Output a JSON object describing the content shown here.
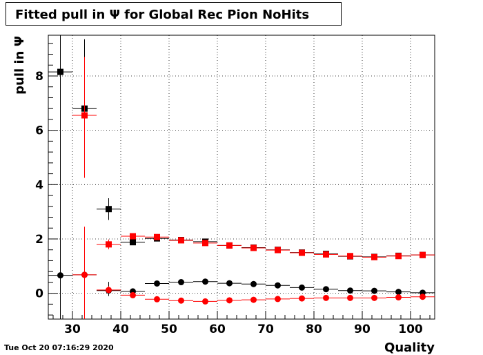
{
  "chart_data": {
    "type": "scatter",
    "title": "Fitted pull in  Ψ  for Global Rec Pion NoHits",
    "xlabel": "Quality",
    "ylabel": "pull in  Ψ",
    "xlim": [
      25,
      105
    ],
    "ylim": [
      -0.95,
      9.5
    ],
    "x_ticks": [
      30,
      40,
      50,
      60,
      70,
      80,
      90,
      100
    ],
    "y_ticks": [
      0,
      2,
      4,
      6,
      8
    ],
    "grid": true,
    "legend": "none",
    "series": [
      {
        "marker": "square",
        "color": "#000000",
        "points": [
          {
            "x": 27.5,
            "y": 8.15,
            "xerr": 2.5,
            "ylo": -0.95,
            "yhi": 9.5
          },
          {
            "x": 32.5,
            "y": 6.8,
            "xerr": 2.5,
            "ylo": 6.75,
            "yhi": 9.35
          },
          {
            "x": 37.5,
            "y": 3.1,
            "xerr": 2.5,
            "ylo": 2.7,
            "yhi": 3.5
          },
          {
            "x": 42.5,
            "y": 1.88,
            "xerr": 2.5,
            "ylo": 1.82,
            "yhi": 1.94
          },
          {
            "x": 47.5,
            "y": 2.02,
            "xerr": 2.5,
            "ylo": 1.97,
            "yhi": 2.07
          },
          {
            "x": 52.5,
            "y": 1.96,
            "xerr": 2.5,
            "ylo": 1.92,
            "yhi": 2.0
          },
          {
            "x": 57.5,
            "y": 1.9,
            "xerr": 2.5,
            "ylo": 1.86,
            "yhi": 1.94
          },
          {
            "x": 62.5,
            "y": 1.76,
            "xerr": 2.5,
            "ylo": 1.72,
            "yhi": 1.8
          },
          {
            "x": 67.5,
            "y": 1.68,
            "xerr": 2.5,
            "ylo": 1.64,
            "yhi": 1.72
          },
          {
            "x": 72.5,
            "y": 1.6,
            "xerr": 2.5,
            "ylo": 1.56,
            "yhi": 1.64
          },
          {
            "x": 77.5,
            "y": 1.5,
            "xerr": 2.5,
            "ylo": 1.46,
            "yhi": 1.54
          },
          {
            "x": 82.5,
            "y": 1.45,
            "xerr": 2.5,
            "ylo": 1.41,
            "yhi": 1.49
          },
          {
            "x": 87.5,
            "y": 1.36,
            "xerr": 2.5,
            "ylo": 1.32,
            "yhi": 1.4
          },
          {
            "x": 92.5,
            "y": 1.34,
            "xerr": 2.5,
            "ylo": 1.3,
            "yhi": 1.38
          },
          {
            "x": 97.5,
            "y": 1.38,
            "xerr": 2.5,
            "ylo": 1.34,
            "yhi": 1.42
          },
          {
            "x": 102.5,
            "y": 1.41,
            "xerr": 2.5,
            "ylo": 1.37,
            "yhi": 1.45
          }
        ]
      },
      {
        "marker": "square",
        "color": "#ff0000",
        "points": [
          {
            "x": 32.5,
            "y": 6.55,
            "xerr": 2.5,
            "ylo": 4.25,
            "yhi": 8.7
          },
          {
            "x": 37.5,
            "y": 1.8,
            "xerr": 2.5,
            "ylo": 1.62,
            "yhi": 1.98
          },
          {
            "x": 42.5,
            "y": 2.1,
            "xerr": 2.5,
            "ylo": 2.04,
            "yhi": 2.16
          },
          {
            "x": 47.5,
            "y": 2.07,
            "xerr": 2.5,
            "ylo": 2.02,
            "yhi": 2.12
          },
          {
            "x": 52.5,
            "y": 1.95,
            "xerr": 2.5,
            "ylo": 1.91,
            "yhi": 1.99
          },
          {
            "x": 57.5,
            "y": 1.85,
            "xerr": 2.5,
            "ylo": 1.81,
            "yhi": 1.89
          },
          {
            "x": 62.5,
            "y": 1.76,
            "xerr": 2.5,
            "ylo": 1.72,
            "yhi": 1.8
          },
          {
            "x": 67.5,
            "y": 1.67,
            "xerr": 2.5,
            "ylo": 1.63,
            "yhi": 1.71
          },
          {
            "x": 72.5,
            "y": 1.59,
            "xerr": 2.5,
            "ylo": 1.55,
            "yhi": 1.63
          },
          {
            "x": 77.5,
            "y": 1.49,
            "xerr": 2.5,
            "ylo": 1.45,
            "yhi": 1.53
          },
          {
            "x": 82.5,
            "y": 1.43,
            "xerr": 2.5,
            "ylo": 1.39,
            "yhi": 1.47
          },
          {
            "x": 87.5,
            "y": 1.37,
            "xerr": 2.5,
            "ylo": 1.33,
            "yhi": 1.41
          },
          {
            "x": 92.5,
            "y": 1.33,
            "xerr": 2.5,
            "ylo": 1.29,
            "yhi": 1.37
          },
          {
            "x": 97.5,
            "y": 1.37,
            "xerr": 2.5,
            "ylo": 1.33,
            "yhi": 1.41
          },
          {
            "x": 102.5,
            "y": 1.41,
            "xerr": 2.5,
            "ylo": 1.37,
            "yhi": 1.45
          }
        ]
      },
      {
        "marker": "circle",
        "color": "#000000",
        "points": [
          {
            "x": 27.5,
            "y": 0.66,
            "xerr": 2.5,
            "ylo": 0.66,
            "yhi": 0.66
          },
          {
            "x": 32.5,
            "y": 0.68,
            "xerr": 2.5,
            "ylo": 0.6,
            "yhi": 0.76
          },
          {
            "x": 37.5,
            "y": 0.1,
            "xerr": 2.5,
            "ylo": -0.1,
            "yhi": 0.42
          },
          {
            "x": 42.5,
            "y": 0.07,
            "xerr": 2.5,
            "ylo": 0.02,
            "yhi": 0.12
          },
          {
            "x": 47.5,
            "y": 0.36,
            "xerr": 2.5,
            "ylo": 0.32,
            "yhi": 0.4
          },
          {
            "x": 52.5,
            "y": 0.41,
            "xerr": 2.5,
            "ylo": 0.37,
            "yhi": 0.45
          },
          {
            "x": 57.5,
            "y": 0.43,
            "xerr": 2.5,
            "ylo": 0.39,
            "yhi": 0.47
          },
          {
            "x": 62.5,
            "y": 0.37,
            "xerr": 2.5,
            "ylo": 0.33,
            "yhi": 0.41
          },
          {
            "x": 67.5,
            "y": 0.34,
            "xerr": 2.5,
            "ylo": 0.3,
            "yhi": 0.38
          },
          {
            "x": 72.5,
            "y": 0.29,
            "xerr": 2.5,
            "ylo": 0.25,
            "yhi": 0.33
          },
          {
            "x": 77.5,
            "y": 0.21,
            "xerr": 2.5,
            "ylo": 0.17,
            "yhi": 0.25
          },
          {
            "x": 82.5,
            "y": 0.15,
            "xerr": 2.5,
            "ylo": 0.11,
            "yhi": 0.19
          },
          {
            "x": 87.5,
            "y": 0.1,
            "xerr": 2.5,
            "ylo": 0.06,
            "yhi": 0.14
          },
          {
            "x": 92.5,
            "y": 0.09,
            "xerr": 2.5,
            "ylo": 0.05,
            "yhi": 0.13
          },
          {
            "x": 97.5,
            "y": 0.05,
            "xerr": 2.5,
            "ylo": 0.01,
            "yhi": 0.09
          },
          {
            "x": 102.5,
            "y": 0.02,
            "xerr": 2.5,
            "ylo": -0.02,
            "yhi": 0.06
          }
        ]
      },
      {
        "marker": "circle",
        "color": "#ff0000",
        "points": [
          {
            "x": 32.5,
            "y": 0.68,
            "xerr": 2.5,
            "ylo": -0.95,
            "yhi": 2.45
          },
          {
            "x": 37.5,
            "y": 0.12,
            "xerr": 2.5,
            "ylo": 0.0,
            "yhi": 0.26
          },
          {
            "x": 42.5,
            "y": -0.07,
            "xerr": 2.5,
            "ylo": -0.11,
            "yhi": -0.03
          },
          {
            "x": 47.5,
            "y": -0.22,
            "xerr": 2.5,
            "ylo": -0.26,
            "yhi": -0.18
          },
          {
            "x": 52.5,
            "y": -0.27,
            "xerr": 2.5,
            "ylo": -0.31,
            "yhi": -0.23
          },
          {
            "x": 57.5,
            "y": -0.3,
            "xerr": 2.5,
            "ylo": -0.34,
            "yhi": -0.26
          },
          {
            "x": 62.5,
            "y": -0.26,
            "xerr": 2.5,
            "ylo": -0.3,
            "yhi": -0.22
          },
          {
            "x": 67.5,
            "y": -0.24,
            "xerr": 2.5,
            "ylo": -0.28,
            "yhi": -0.2
          },
          {
            "x": 72.5,
            "y": -0.21,
            "xerr": 2.5,
            "ylo": -0.25,
            "yhi": -0.17
          },
          {
            "x": 77.5,
            "y": -0.19,
            "xerr": 2.5,
            "ylo": -0.23,
            "yhi": -0.15
          },
          {
            "x": 82.5,
            "y": -0.17,
            "xerr": 2.5,
            "ylo": -0.21,
            "yhi": -0.13
          },
          {
            "x": 87.5,
            "y": -0.17,
            "xerr": 2.5,
            "ylo": -0.21,
            "yhi": -0.13
          },
          {
            "x": 92.5,
            "y": -0.17,
            "xerr": 2.5,
            "ylo": -0.21,
            "yhi": -0.13
          },
          {
            "x": 97.5,
            "y": -0.15,
            "xerr": 2.5,
            "ylo": -0.19,
            "yhi": -0.11
          },
          {
            "x": 102.5,
            "y": -0.13,
            "xerr": 2.5,
            "ylo": -0.17,
            "yhi": -0.09
          }
        ]
      }
    ]
  },
  "footer": {
    "datestamp": "Tue Oct 20 07:16:29 2020"
  }
}
